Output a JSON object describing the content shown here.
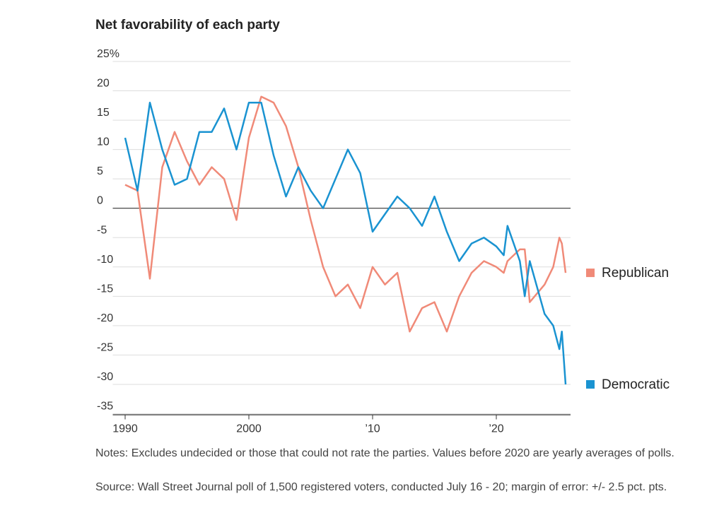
{
  "chart_data": {
    "type": "line",
    "title": "Net favorability of each party",
    "notes": "Notes: Excludes undecided or those that could not rate the parties. Values before 2020 are yearly averages of polls.",
    "source": "Source: Wall Street Journal poll of 1,500 registered voters, conducted July 16 - 20; margin of error: +/- 2.5 pct. pts.",
    "x": [
      1990,
      1991,
      1992,
      1993,
      1994,
      1995,
      1996,
      1997,
      1998,
      1999,
      2000,
      2001,
      2002,
      2003,
      2004,
      2005,
      2006,
      2007,
      2008,
      2009,
      2010,
      2011,
      2012,
      2013,
      2014,
      2015,
      2016,
      2017,
      2018,
      2019,
      2020,
      2020.6,
      2020.9,
      2021.9,
      2022.3,
      2022.7,
      2023.9,
      2024.6,
      2025.1,
      2025.3,
      2025.6
    ],
    "series": [
      {
        "name": "Republican",
        "color": "#f08a78",
        "values": [
          4,
          3,
          -12,
          7,
          13,
          8,
          4,
          7,
          5,
          -2,
          12,
          19,
          18,
          14,
          7,
          -2,
          -10,
          -15,
          -13,
          -17,
          -10,
          -13,
          -11,
          -21,
          -17,
          -16,
          -21,
          -15,
          -11,
          -9,
          -10,
          -11,
          -9,
          -7,
          -7,
          -16,
          -13,
          -10,
          -5,
          -6,
          -11
        ]
      },
      {
        "name": "Democratic",
        "color": "#1a93d1",
        "values": [
          12,
          3,
          18,
          10,
          4,
          5,
          13,
          13,
          17,
          10,
          18,
          18,
          9,
          2,
          7,
          3,
          0,
          5,
          10,
          6,
          -4,
          -1,
          2,
          0,
          -3,
          2,
          -4,
          -9,
          -6,
          -5,
          -6.5,
          -8,
          -3,
          -9,
          -15,
          -9,
          -18,
          -20,
          -24,
          -21,
          -30
        ]
      }
    ],
    "xlim": [
      1989,
      2026
    ],
    "xticks": [
      1990,
      2000,
      {
        "value": 2010,
        "label": "’10"
      },
      {
        "value": 2020,
        "label": "’20"
      }
    ],
    "ylim": [
      -35,
      25
    ],
    "yticks": [
      -35,
      -30,
      -25,
      -20,
      -15,
      -10,
      -5,
      0,
      5,
      10,
      15,
      20,
      {
        "value": 25,
        "label": "25%"
      }
    ],
    "grid": true
  }
}
